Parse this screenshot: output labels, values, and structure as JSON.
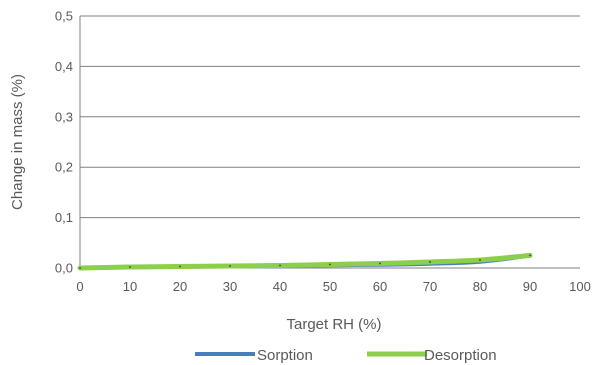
{
  "chart_data": {
    "type": "line",
    "title": "",
    "xlabel": "Target RH (%)",
    "ylabel": "Change in mass (%)",
    "xlim": [
      0,
      100
    ],
    "ylim": [
      0,
      0.5
    ],
    "x_ticks": [
      0,
      10,
      20,
      30,
      40,
      50,
      60,
      70,
      80,
      90,
      100
    ],
    "x_tick_labels": [
      "0",
      "10",
      "20",
      "30",
      "40",
      "50",
      "60",
      "70",
      "80",
      "90",
      "100"
    ],
    "y_ticks": [
      0,
      0.1,
      0.2,
      0.3,
      0.4,
      0.5
    ],
    "y_tick_labels": [
      "0,0",
      "0,1",
      "0,2",
      "0,3",
      "0,4",
      "0,5"
    ],
    "grid": "horizontal",
    "legend": "bottom",
    "x": [
      0,
      10,
      20,
      30,
      40,
      50,
      60,
      70,
      80,
      90
    ],
    "series": [
      {
        "name": "Sorption",
        "color": "#4a7ebb",
        "values": [
          0.0,
          0.001,
          0.002,
          0.003,
          0.004,
          0.005,
          0.006,
          0.008,
          0.012,
          0.024
        ]
      },
      {
        "name": "Desorption",
        "color": "#8ccf4d",
        "values": [
          0.0,
          0.002,
          0.003,
          0.004,
          0.005,
          0.007,
          0.009,
          0.012,
          0.016,
          0.025
        ]
      }
    ]
  }
}
